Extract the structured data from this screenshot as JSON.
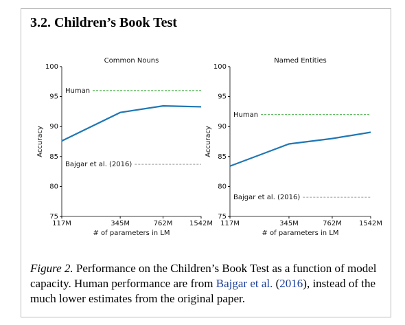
{
  "section_title": "3.2. Children’s Book Test",
  "chart_data": [
    {
      "type": "line",
      "title": "Common Nouns",
      "x_label": "# of parameters in LM",
      "y_label": "Accuracy",
      "x": [
        117,
        345,
        762,
        1542
      ],
      "values": [
        87.6,
        92.35,
        93.45,
        93.3
      ],
      "color": "#1f77b4",
      "xscale": "log",
      "xlim": [
        117,
        1542
      ],
      "xticks": [
        {
          "value": 117,
          "label": "117M"
        },
        {
          "value": 345,
          "label": "345M"
        },
        {
          "value": 762,
          "label": "762M"
        },
        {
          "value": 1542,
          "label": "1542M"
        }
      ],
      "ylim": [
        75,
        100
      ],
      "yticks": [
        75,
        80,
        85,
        90,
        95,
        100
      ],
      "reference_lines": [
        {
          "name": "Human",
          "value": 96,
          "color": "#2ca02c"
        },
        {
          "name": "Bajgar et al. (2016)",
          "value": 83.7,
          "color": "#999999"
        }
      ]
    },
    {
      "type": "line",
      "title": "Named Entities",
      "x_label": "# of parameters in LM",
      "y_label": "Accuracy",
      "x": [
        117,
        345,
        762,
        1542
      ],
      "values": [
        83.4,
        87.1,
        88.0,
        89.05
      ],
      "color": "#1f77b4",
      "xscale": "log",
      "xlim": [
        117,
        1542
      ],
      "xticks": [
        {
          "value": 117,
          "label": "117M"
        },
        {
          "value": 345,
          "label": "345M"
        },
        {
          "value": 762,
          "label": "762M"
        },
        {
          "value": 1542,
          "label": "1542M"
        }
      ],
      "ylim": [
        75,
        100
      ],
      "yticks": [
        75,
        80,
        85,
        90,
        95,
        100
      ],
      "reference_lines": [
        {
          "name": "Human",
          "value": 92,
          "color": "#2ca02c"
        },
        {
          "name": "Bajgar et al. (2016)",
          "value": 78.2,
          "color": "#999999"
        }
      ]
    }
  ],
  "caption": {
    "label": "Figure 2.",
    "text": "Performance on the Children’s Book Test as a function of model capacity. Human performance are from",
    "link_author": "Bajgar et al.",
    "open": "(",
    "link_year": "2016",
    "rest": "), instead of the much lower estimates from the original paper."
  }
}
